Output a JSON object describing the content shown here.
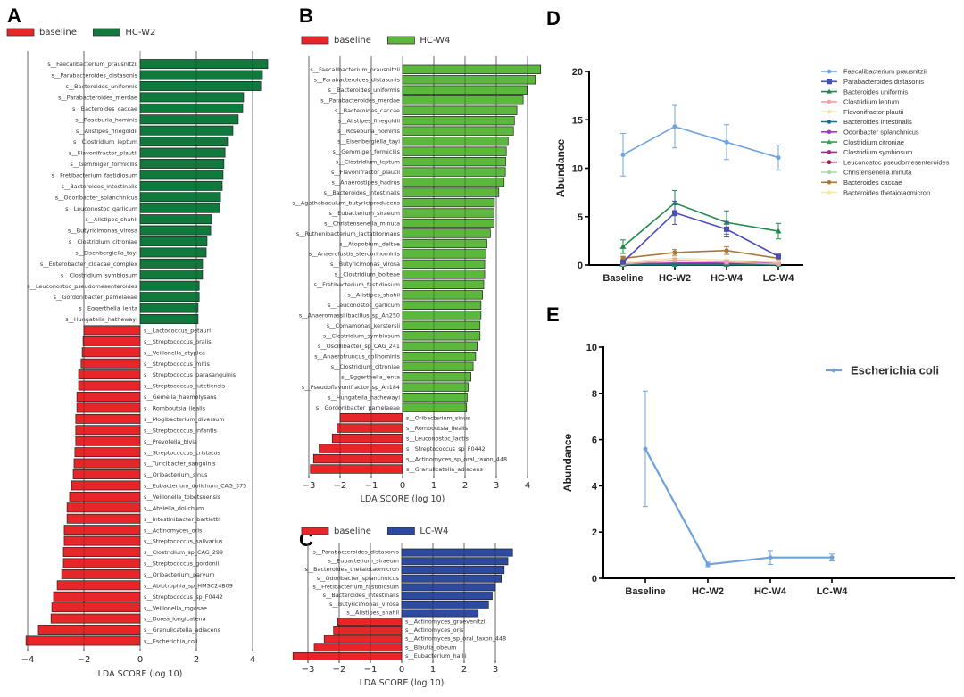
{
  "chart_data": [
    {
      "id": "A",
      "type": "bar",
      "orientation": "horizontal",
      "panel_label": "A",
      "legend": [
        {
          "name": "baseline",
          "color": "#e8262a"
        },
        {
          "name": "HC-W2",
          "color": "#0f7a3c"
        }
      ],
      "xlabel": "LDA SCORE (log 10)",
      "xlim": [
        -4.2,
        4.8
      ],
      "xticks": [
        -4,
        -2,
        0,
        2,
        4
      ],
      "grid": true,
      "categories": [
        "s__Faecalibacterium_prausnitzii",
        "s__Parabacteroides_distasonis",
        "s__Bacteroides_uniformis",
        "s__Parabacteroides_merdae",
        "s__Bacteroides_caccae",
        "s__Roseburia_hominis",
        "s__Alistipes_finegoldii",
        "s__Clostridium_leptum",
        "s__Flavonifractor_plautii",
        "s__Gemmiger_formicilis",
        "s__Fretibacterium_fastidiosum",
        "s__Bacteroides_intestinalis",
        "s__Odoribacter_splanchnicus",
        "s__Leuconostoc_garlicum",
        "s__Alistipes_shahii",
        "s__Butyricimonas_virosa",
        "s__Clostridium_citroniae",
        "s__Eisenbergiella_tayi",
        "s__Enterobacter_cloacae_complex",
        "s__Clostridium_symbiosum",
        "s__Leuconostoc_pseudomesenteroides",
        "s__Gordonibacter_pamelaeae",
        "s__Eggerthella_lenta",
        "s__Hungatella_hathewayi",
        "s__Lactococcus_petauri",
        "s__Streptococcus_oralis",
        "s__Veillonella_atypica",
        "s__Streptococcus_mitis",
        "s__Streptococcus_parasanguinis",
        "s__Streptococcus_lutetiensis",
        "s__Gemella_haemolysans",
        "s__Romboutsia_ilealis",
        "s__Mogibacterium_diversum",
        "s__Streptococcus_infantis",
        "s__Prevotella_bivia",
        "s__Streptococcus_cristatus",
        "s__Turicibacter_sanguinis",
        "s__Oribacterium_sinus",
        "s__Eubacterium_dolichum_CAG_375",
        "s__Veillonella_tobetsuensis",
        "s__Absiella_dolichum",
        "s__Intestinibacter_bartlettii",
        "s__Actinomyces_oris",
        "s__Streptococcus_salivarius",
        "s__Clostridium_sp_CAG_299",
        "s__Streptococcus_gordonii",
        "s__Oribacterium_parvum",
        "s__Abiotrophia_sp_HMSC24B09",
        "s__Streptococcus_sp_F0442",
        "s__Veillonella_rogosae",
        "s__Dorea_longicatena",
        "s__Granulicatella_adiacens",
        "s__Escherichia_coli"
      ],
      "values": [
        4.54,
        4.35,
        4.29,
        3.68,
        3.65,
        3.49,
        3.3,
        3.11,
        3.02,
        2.98,
        2.95,
        2.92,
        2.86,
        2.83,
        2.54,
        2.51,
        2.38,
        2.35,
        2.22,
        2.22,
        2.1,
        2.1,
        2.06,
        2.06,
        -2.0,
        -2.03,
        -2.06,
        -2.1,
        -2.19,
        -2.19,
        -2.25,
        -2.25,
        -2.29,
        -2.29,
        -2.29,
        -2.32,
        -2.35,
        -2.38,
        -2.44,
        -2.51,
        -2.6,
        -2.6,
        -2.7,
        -2.7,
        -2.73,
        -2.73,
        -2.79,
        -2.95,
        -3.08,
        -3.14,
        -3.17,
        -3.62,
        -4.06
      ]
    },
    {
      "id": "B",
      "type": "bar",
      "orientation": "horizontal",
      "panel_label": "B",
      "legend": [
        {
          "name": "baseline",
          "color": "#e8262a"
        },
        {
          "name": "HC-W4",
          "color": "#5cb83c"
        }
      ],
      "xlabel": "LDA SCORE (log 10)",
      "xlim": [
        -3.0,
        4.4
      ],
      "xticks": [
        -3,
        -2,
        -1,
        0,
        1,
        2,
        3,
        4
      ],
      "grid": true,
      "categories": [
        "s__Faecalibacterium_prausnitzii",
        "s__Parabacteroides_distasonis",
        "s__Bacteroides_uniformis",
        "s__Parabacteroides_merdae",
        "s__Bacteroides_caccae",
        "s__Alistipes_finegoldii",
        "s__Roseburia_hominis",
        "s__Eisenbergiella_tayi",
        "s__Gemmiger_formicilis",
        "s__Clostridium_leptum",
        "s__Flavonifractor_plautii",
        "s__Anaerostipes_hadrus",
        "s__Bacteroides_intestinalis",
        "s__Agathobaculum_butyriciproducens",
        "s__Eubacterium_siraeum",
        "s__Christensenella_minuta",
        "s__Ruthenibacterium_lactatiformans",
        "s__Atopobium_deltae",
        "s__Anaerofustis_stercorihominis",
        "s__Butyricimonas_virosa",
        "s__Clostridium_bolteae",
        "s__Fretibacterium_fastidiosum",
        "s__Alistipes_shahii",
        "s__Leuconostoc_garlicum",
        "s__Anaeromassilibacillus_sp_An250",
        "s__Comamonas_kerstersii",
        "s__Clostridium_symbiosum",
        "s__Oscillibacter_sp_CAG_241",
        "s__Anaerotruncus_colihominis",
        "s__Clostridium_citroniae",
        "s__Eggerthella_lenta",
        "s__Pseudoflavonifractor_sp_An184",
        "s__Hungatella_hathewayi",
        "s__Gordonibacter_pamelaeae",
        "s__Oribacterium_sinus",
        "s__Romboutsia_ilealis",
        "s__Leuconostoc_lactis",
        "s__Streptococcus_sp_F0442",
        "s__Actinomyces_sp_oral_taxon_448",
        "s__Granulicatella_adiacens"
      ],
      "values": [
        4.42,
        4.25,
        3.98,
        3.86,
        3.66,
        3.58,
        3.55,
        3.38,
        3.32,
        3.3,
        3.29,
        3.25,
        3.08,
        2.94,
        2.93,
        2.93,
        2.81,
        2.7,
        2.67,
        2.63,
        2.63,
        2.6,
        2.56,
        2.51,
        2.51,
        2.48,
        2.48,
        2.39,
        2.34,
        2.26,
        2.19,
        2.1,
        2.07,
        2.05,
        -2.0,
        -2.1,
        -2.25,
        -2.67,
        -2.85,
        -2.95
      ]
    },
    {
      "id": "C",
      "type": "bar",
      "orientation": "horizontal",
      "panel_label": "C",
      "legend": [
        {
          "name": "baseline",
          "color": "#e8262a"
        },
        {
          "name": "LC-W4",
          "color": "#2e4aa0"
        }
      ],
      "xlabel": "LDA SCORE (log 10)",
      "xlim": [
        -3.5,
        3.6
      ],
      "xticks": [
        -3,
        -2,
        -1,
        0,
        1,
        2,
        3
      ],
      "grid": true,
      "categories": [
        "s__Parabacteroides_distasonis",
        "s__Eubacterium_siraeum",
        "s__Bacteroides_thetaiotaomicron",
        "s__Odoribacter_splanchnicus",
        "s__Fretibacterium_fastidiosum",
        "s__Bacteroides_intestinalis",
        "s__Butyricimonas_virosa",
        "s__Alistipes_shahii",
        "s__Actinomyces_graevenitzii",
        "s__Actinomyces_oris",
        "s__Actinomyces_sp_oral_taxon_448",
        "s__Blautia_obeum",
        "s__Eubacterium_hallii"
      ],
      "values": [
        3.55,
        3.4,
        3.28,
        3.19,
        3.0,
        2.9,
        2.78,
        2.45,
        -2.05,
        -2.18,
        -2.48,
        -2.8,
        -3.48
      ]
    },
    {
      "id": "D",
      "type": "line",
      "panel_label": "D",
      "ylabel": "Abundance",
      "xlabel": "",
      "categories": [
        "Baseline",
        "HC-W2",
        "HC-W4",
        "LC-W4"
      ],
      "ylim": [
        0,
        20
      ],
      "yticks": [
        0,
        5,
        10,
        15,
        20
      ],
      "legend_position": "right",
      "series": [
        {
          "name": "Faecalibacterium prausnitzii",
          "color": "#6fa3dc",
          "marker": "circle",
          "values": [
            11.4,
            14.3,
            12.7,
            11.1
          ],
          "err": [
            2.2,
            2.2,
            1.8,
            1.3
          ]
        },
        {
          "name": "Parabacteroides distasonis",
          "color": "#4a4fb8",
          "marker": "square",
          "values": [
            0.3,
            5.4,
            3.7,
            0.9
          ],
          "err": [
            0.2,
            1.2,
            0.8,
            0.1
          ]
        },
        {
          "name": "Bacteroides uniformis",
          "color": "#1e8a4c",
          "marker": "triangle",
          "values": [
            1.9,
            6.4,
            4.4,
            3.5
          ],
          "err": [
            0.7,
            1.3,
            1.2,
            0.8
          ]
        },
        {
          "name": "Clostridium leptum",
          "color": "#f3a0a8",
          "marker": "circle",
          "values": [
            0.1,
            0.5,
            0.3,
            0.1
          ],
          "err": [
            0.1,
            0.2,
            0.2,
            0.1
          ]
        },
        {
          "name": "Flavonifractor plautii",
          "color": "#f0e6b6",
          "marker": "diamond",
          "values": [
            0.3,
            0.7,
            0.5,
            0.3
          ],
          "err": [
            0.1,
            0.2,
            0.1,
            0.1
          ]
        },
        {
          "name": "Bacteroides intestinalis",
          "color": "#1f6f8a",
          "marker": "circle-open",
          "values": [
            0.05,
            0.1,
            0.1,
            0.1
          ],
          "err": [
            0.05,
            0.05,
            0.05,
            0.05
          ]
        },
        {
          "name": "Odoribacter splanchnicus",
          "color": "#9b3fbe",
          "marker": "square-open",
          "values": [
            0.1,
            0.2,
            0.2,
            0.3
          ],
          "err": [
            0.05,
            0.05,
            0.05,
            0.05
          ]
        },
        {
          "name": "Clostridium citroniae",
          "color": "#2fa84a",
          "marker": "triangle",
          "values": [
            0.05,
            0.05,
            0.05,
            0.05
          ],
          "err": [
            0.02,
            0.02,
            0.02,
            0.02
          ]
        },
        {
          "name": "Clostridium symbiosum",
          "color": "#a0308a",
          "marker": "triangle-down",
          "values": [
            0.05,
            0.05,
            0.05,
            0.05
          ],
          "err": [
            0.02,
            0.02,
            0.02,
            0.02
          ]
        },
        {
          "name": "Leuconostoc pseudomesenteroides",
          "color": "#8a1f4a",
          "marker": "diamond",
          "values": [
            0.02,
            0.02,
            0.02,
            0.02
          ],
          "err": [
            0.01,
            0.01,
            0.01,
            0.01
          ]
        },
        {
          "name": "Christensenella minuta",
          "color": "#a8d8a8",
          "marker": "circle",
          "values": [
            0.1,
            0.1,
            0.1,
            0.1
          ],
          "err": [
            0.02,
            0.02,
            0.02,
            0.02
          ]
        },
        {
          "name": "Bacteroides caccae",
          "color": "#a87a3a",
          "marker": "plus",
          "values": [
            0.7,
            1.3,
            1.5,
            0.7
          ],
          "err": [
            0.2,
            0.3,
            0.4,
            0.1
          ]
        },
        {
          "name": "Bacteroides thetaiotaomicron",
          "color": "#f2ee9a",
          "marker": "circle",
          "values": [
            0.2,
            0.3,
            0.3,
            0.2
          ],
          "err": [
            0.05,
            0.05,
            0.05,
            0.05
          ]
        }
      ]
    },
    {
      "id": "E",
      "type": "line",
      "panel_label": "E",
      "ylabel": "Abundance",
      "xlabel": "",
      "categories": [
        "Baseline",
        "HC-W2",
        "HC-W4",
        "LC-W4"
      ],
      "ylim": [
        0,
        10
      ],
      "yticks": [
        0,
        2,
        4,
        6,
        8,
        10
      ],
      "legend_position": "top-right",
      "series": [
        {
          "name": "Escherichia coli",
          "color": "#6fa3dc",
          "marker": "circle",
          "values": [
            5.6,
            0.6,
            0.9,
            0.9
          ],
          "err": [
            2.5,
            0.1,
            0.3,
            0.15
          ]
        }
      ]
    }
  ]
}
